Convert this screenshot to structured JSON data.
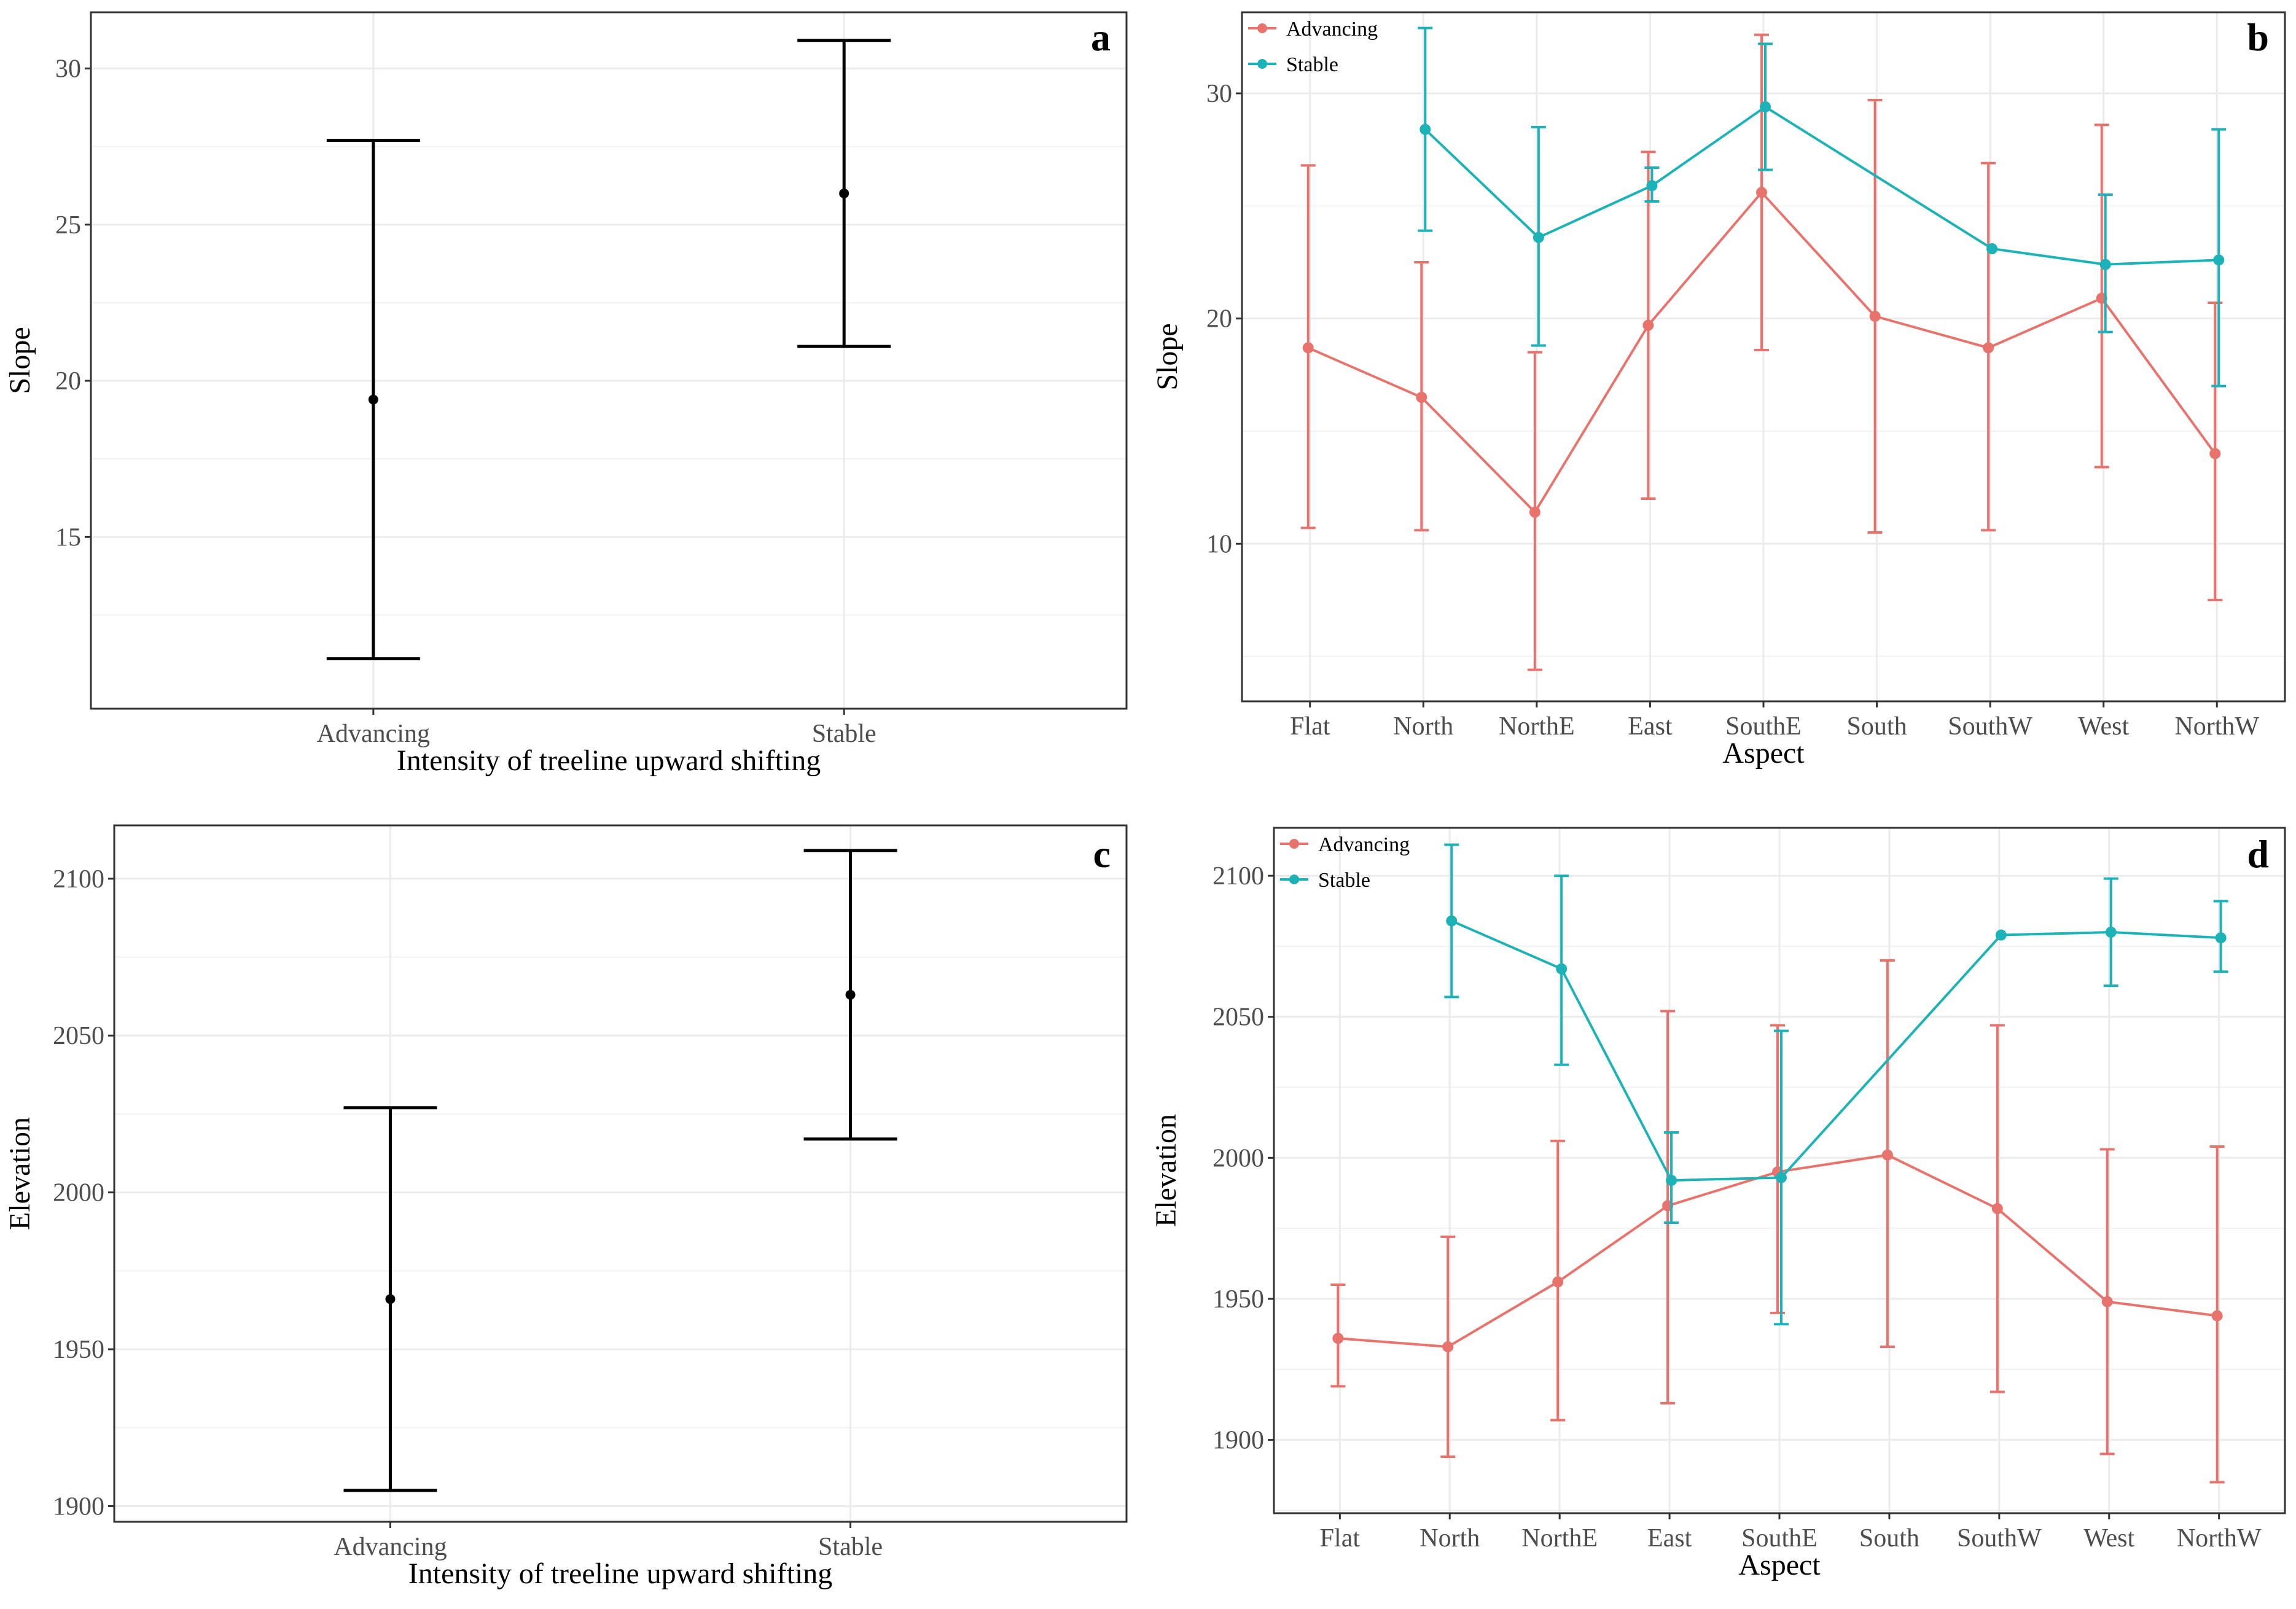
{
  "chart_data": [
    {
      "panel": "a",
      "type": "errorbar",
      "categories": [
        "Advancing",
        "Stable"
      ],
      "values": [
        19.4,
        26.0
      ],
      "lower": [
        11.1,
        21.1
      ],
      "upper": [
        27.7,
        30.9
      ],
      "xlabel": "Intensity of treeline upward shifting",
      "ylabel": "Slope",
      "ylim": [
        9.5,
        31.8
      ],
      "yticks": [
        15,
        20,
        25,
        30
      ],
      "color": "#000000"
    },
    {
      "panel": "b",
      "type": "line",
      "categories": [
        "Flat",
        "North",
        "NorthE",
        "East",
        "SouthE",
        "South",
        "SouthW",
        "West",
        "NorthW"
      ],
      "series": [
        {
          "name": "Advancing",
          "color": "#E8736C",
          "values": [
            18.7,
            16.5,
            11.4,
            19.7,
            25.6,
            20.1,
            18.7,
            20.9,
            14.0
          ],
          "lower": [
            10.7,
            10.6,
            4.4,
            12.0,
            18.6,
            10.5,
            10.6,
            13.4,
            7.5
          ],
          "upper": [
            26.8,
            22.5,
            18.5,
            27.4,
            32.6,
            29.7,
            26.9,
            28.6,
            20.7
          ]
        },
        {
          "name": "Stable",
          "color": "#1CB3B8",
          "values": [
            null,
            28.4,
            23.6,
            25.9,
            29.4,
            null,
            23.1,
            22.4,
            22.6
          ],
          "lower": [
            null,
            23.9,
            18.8,
            25.2,
            26.6,
            null,
            null,
            19.4,
            17.0
          ],
          "upper": [
            null,
            32.9,
            28.5,
            26.7,
            32.2,
            null,
            null,
            25.5,
            28.4
          ]
        }
      ],
      "xlabel": "Aspect",
      "ylabel": "Slope",
      "ylim": [
        3.0,
        33.6
      ],
      "yticks": [
        10,
        20,
        30
      ],
      "legend": "top-left"
    },
    {
      "panel": "c",
      "type": "errorbar",
      "categories": [
        "Advancing",
        "Stable"
      ],
      "values": [
        1966,
        2063
      ],
      "lower": [
        1905,
        2017
      ],
      "upper": [
        2027,
        2109
      ],
      "xlabel": "Intensity of treeline upward shifting",
      "ylabel": "Elevation",
      "ylim": [
        1895,
        2117
      ],
      "yticks": [
        1900,
        1950,
        2000,
        2050,
        2100
      ],
      "color": "#000000"
    },
    {
      "panel": "d",
      "type": "line",
      "categories": [
        "Flat",
        "North",
        "NorthE",
        "East",
        "SouthE",
        "South",
        "SouthW",
        "West",
        "NorthW"
      ],
      "series": [
        {
          "name": "Advancing",
          "color": "#E8736C",
          "values": [
            1936,
            1933,
            1956,
            1983,
            1995,
            2001,
            1982,
            1949,
            1944
          ],
          "lower": [
            1919,
            1894,
            1907,
            1913,
            1945,
            1933,
            1917,
            1895,
            1885
          ],
          "upper": [
            1955,
            1972,
            2006,
            2052,
            2047,
            2070,
            2047,
            2003,
            2004
          ]
        },
        {
          "name": "Stable",
          "color": "#1CB3B8",
          "values": [
            null,
            2084,
            2067,
            1992,
            1993,
            null,
            2079,
            2080,
            2078
          ],
          "lower": [
            null,
            2057,
            2033,
            1977,
            1941,
            null,
            null,
            2061,
            2066
          ],
          "upper": [
            null,
            2111,
            2100,
            2009,
            2045,
            null,
            null,
            2099,
            2091
          ]
        }
      ],
      "xlabel": "Aspect",
      "ylabel": "Elevation",
      "ylim": [
        1874,
        2117
      ],
      "yticks": [
        1900,
        1950,
        2000,
        2050,
        2100
      ],
      "legend": "top-left"
    }
  ]
}
